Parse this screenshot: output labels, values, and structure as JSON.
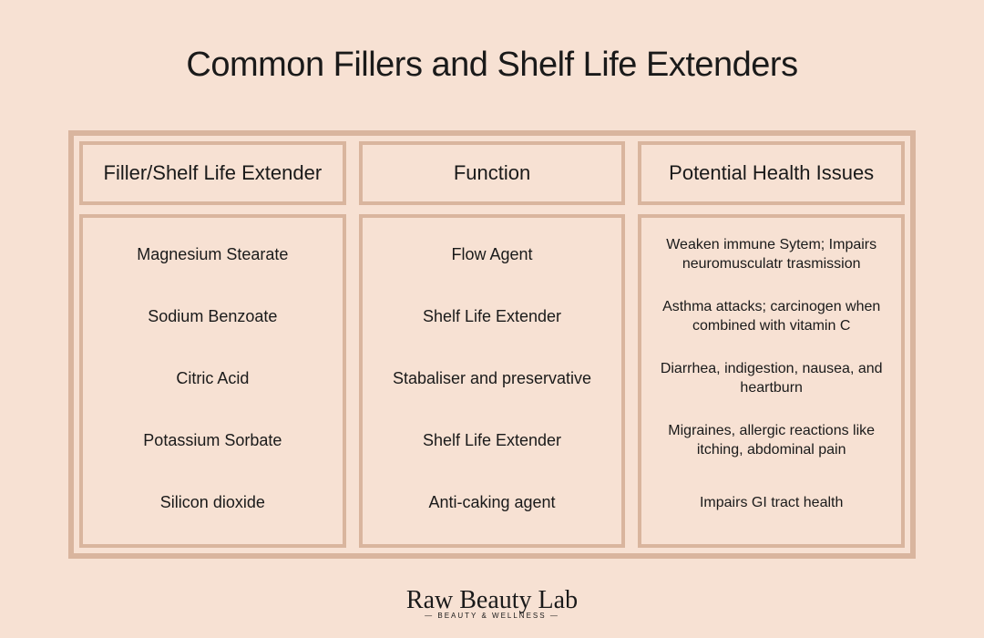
{
  "style": {
    "background_color": "#f7e1d3",
    "border_color": "#d9b59e",
    "text_color": "#1a1a1a",
    "title_fontsize": 38,
    "header_fontsize": 22,
    "body_fontsize": 18,
    "issues_fontsize": 16,
    "outer_border_width": 6,
    "inner_border_width": 4
  },
  "title": "Common Fillers and Shelf Life Extenders",
  "table": {
    "columns": [
      {
        "header": "Filler/Shelf Life Extender",
        "rows": [
          "Magnesium Stearate",
          "Sodium Benzoate",
          "Citric Acid",
          "Potassium Sorbate",
          "Silicon dioxide"
        ]
      },
      {
        "header": "Function",
        "rows": [
          "Flow Agent",
          "Shelf Life Extender",
          "Stabaliser and preservative",
          "Shelf Life Extender",
          "Anti-caking agent"
        ]
      },
      {
        "header": "Potential Health Issues",
        "rows": [
          "Weaken immune Sytem; Impairs neuromusculatr trasmission",
          "Asthma attacks; carcinogen when combined with vitamin C",
          "Diarrhea, indigestion, nausea, and heartburn",
          "Migraines, allergic reactions like itching, abdominal pain",
          "Impairs GI tract  health"
        ]
      }
    ]
  },
  "brand": {
    "name": "Raw Beauty Lab",
    "tagline": "— BEAUTY & WELLNESS —"
  }
}
